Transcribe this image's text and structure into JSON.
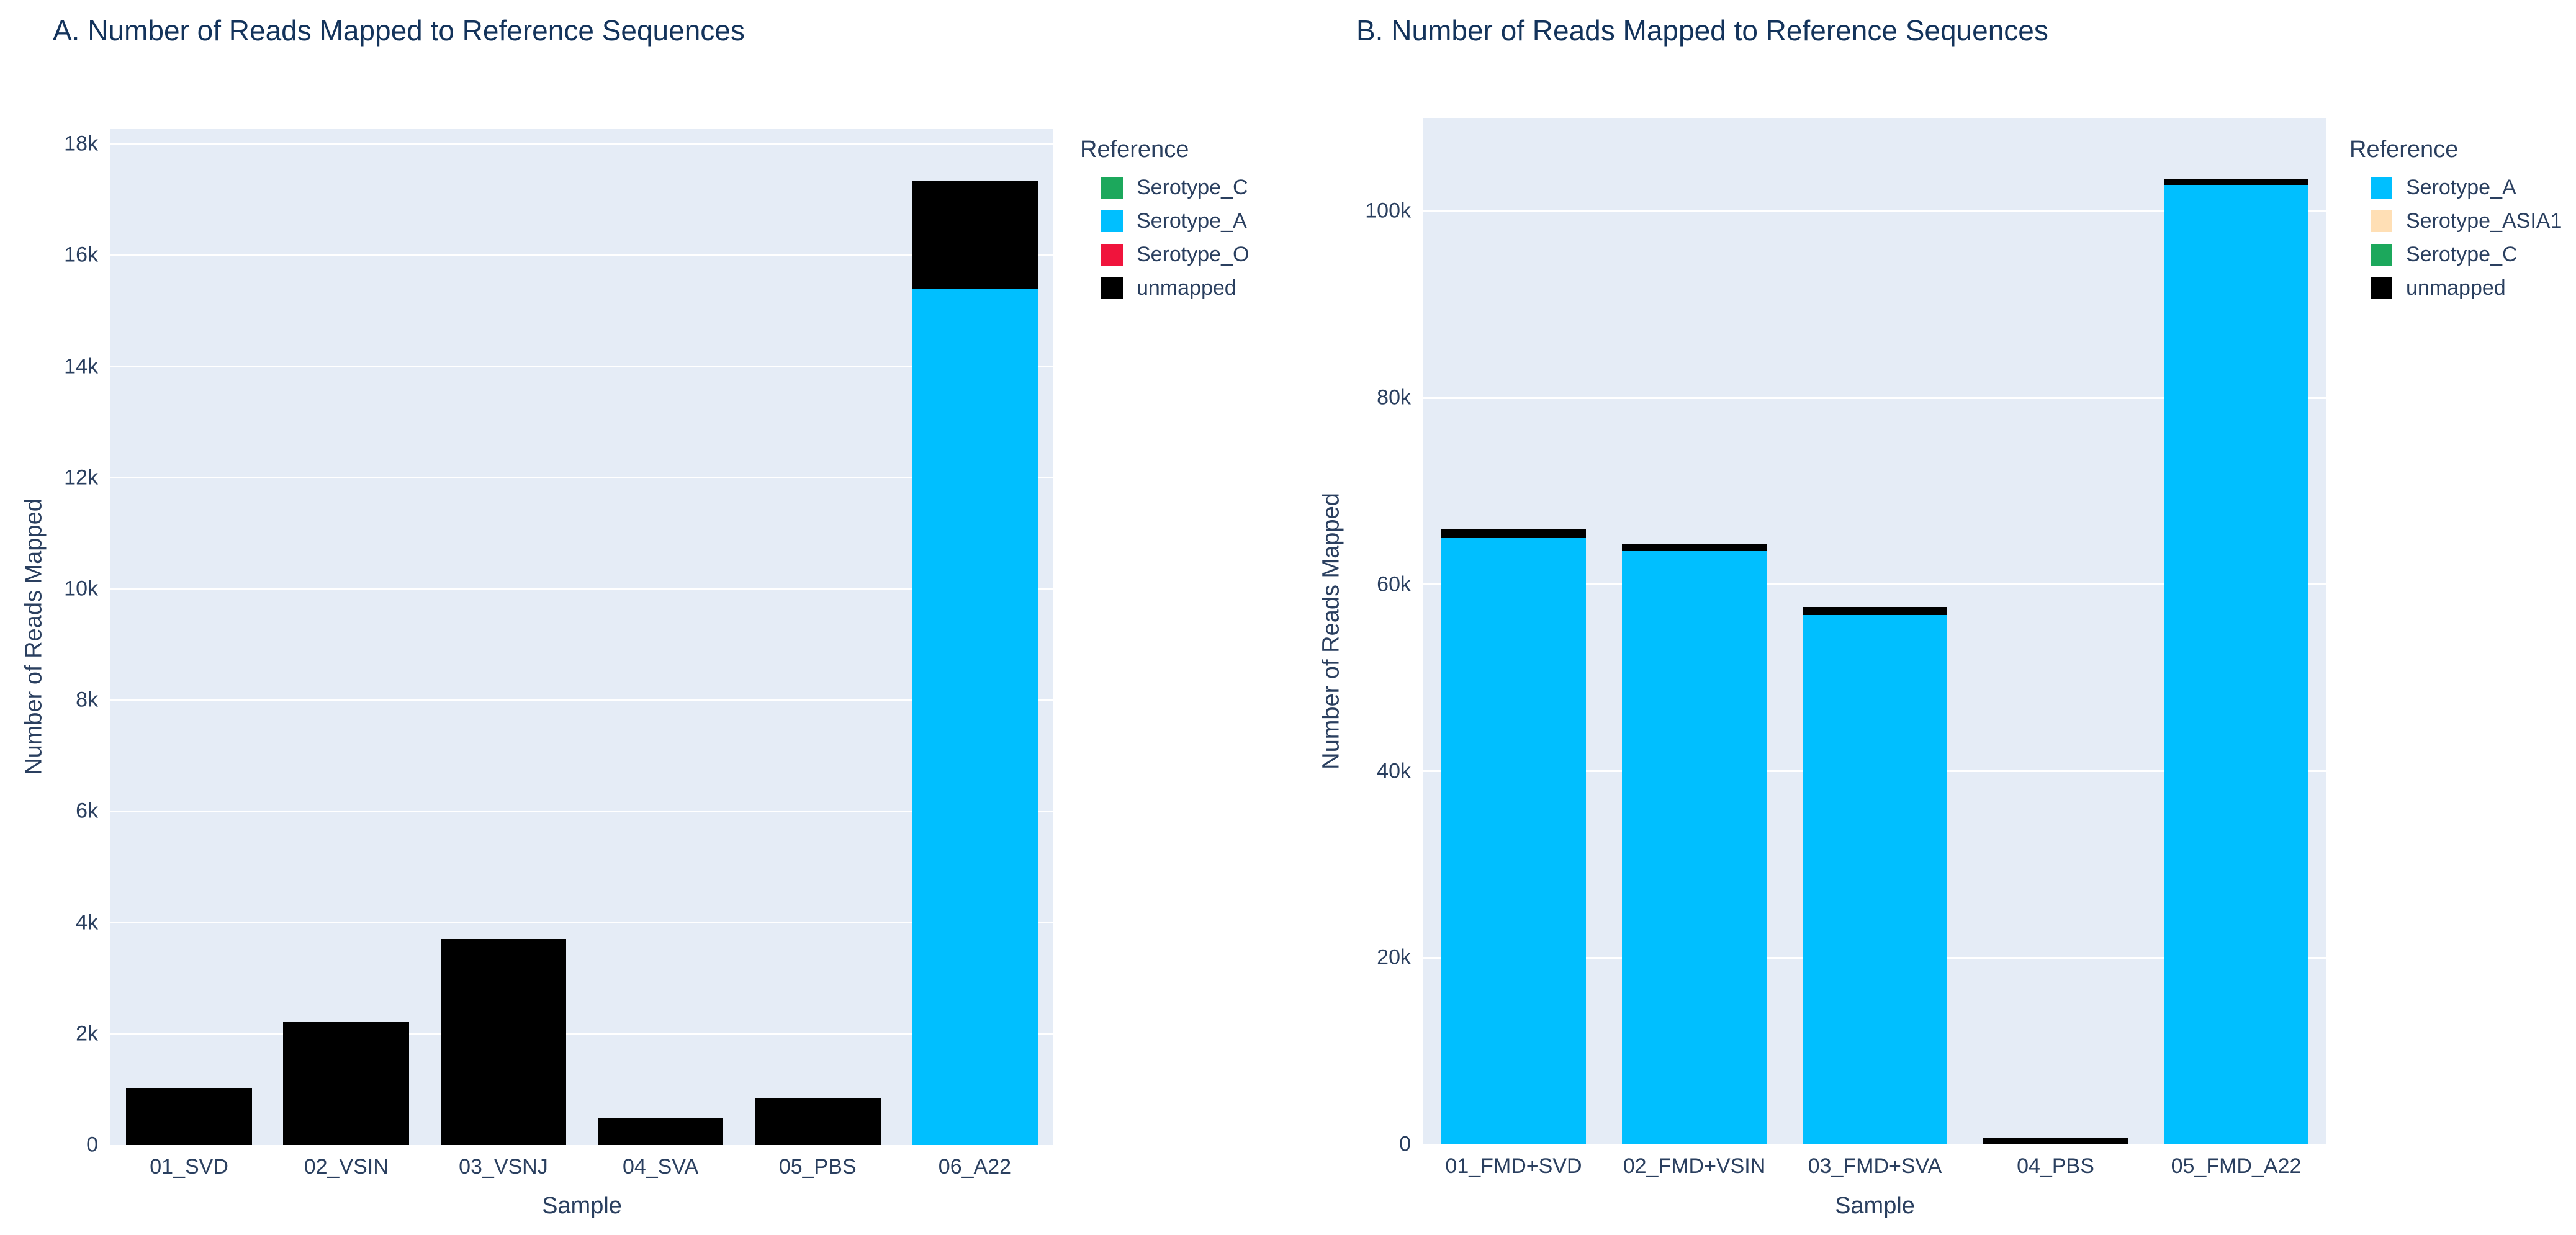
{
  "style": {
    "text_color": "#2a3f5f",
    "plot_background": "#e5ecf6",
    "grid_color": "#ffffff",
    "page_background": "#ffffff"
  },
  "chart_data": [
    {
      "id": "A",
      "type": "bar",
      "stacked": true,
      "title": "A. Number of Reads Mapped to Reference Sequences",
      "xlabel": "Sample",
      "ylabel": "Number of Reads Mapped",
      "legend_title": "Reference",
      "legend_position": "right",
      "grid": true,
      "plot_bg": "#e5ecf6",
      "grid_color": "#ffffff",
      "categories": [
        "01_SVD",
        "02_VSIN",
        "03_VSNJ",
        "04_SVA",
        "05_PBS",
        "06_A22"
      ],
      "series": [
        {
          "name": "Serotype_C",
          "color": "#1ca85c",
          "values": [
            0,
            0,
            0,
            0,
            0,
            0
          ]
        },
        {
          "name": "Serotype_A",
          "color": "#00bfff",
          "values": [
            0,
            0,
            0,
            0,
            0,
            15400
          ]
        },
        {
          "name": "Serotype_O",
          "color": "#f0143c",
          "values": [
            0,
            0,
            0,
            0,
            0,
            0
          ]
        },
        {
          "name": "unmapped",
          "color": "#000000",
          "values": [
            1030,
            2210,
            3700,
            480,
            840,
            1930
          ]
        }
      ],
      "ylim": [
        0,
        18270
      ],
      "yticks": [
        {
          "value": 0,
          "label": "0"
        },
        {
          "value": 2000,
          "label": "2k"
        },
        {
          "value": 4000,
          "label": "4k"
        },
        {
          "value": 6000,
          "label": "6k"
        },
        {
          "value": 8000,
          "label": "8k"
        },
        {
          "value": 10000,
          "label": "10k"
        },
        {
          "value": 12000,
          "label": "12k"
        },
        {
          "value": 14000,
          "label": "14k"
        },
        {
          "value": 16000,
          "label": "16k"
        },
        {
          "value": 18000,
          "label": "18k"
        }
      ]
    },
    {
      "id": "B",
      "type": "bar",
      "stacked": true,
      "title": "B. Number of Reads Mapped to Reference Sequences",
      "xlabel": "Sample",
      "ylabel": "Number of Reads Mapped",
      "legend_title": "Reference",
      "legend_position": "right",
      "grid": true,
      "plot_bg": "#e5ecf6",
      "grid_color": "#ffffff",
      "categories": [
        "01_FMD+SVD",
        "02_FMD+VSIN",
        "03_FMD+SVA",
        "04_PBS",
        "05_FMD_A22"
      ],
      "series": [
        {
          "name": "Serotype_A",
          "color": "#00bfff",
          "values": [
            65000,
            63600,
            56700,
            0,
            102800
          ]
        },
        {
          "name": "Serotype_ASIA1",
          "color": "#ffdfb5",
          "values": [
            0,
            0,
            0,
            0,
            0
          ]
        },
        {
          "name": "Serotype_C",
          "color": "#1ca85c",
          "values": [
            0,
            0,
            0,
            0,
            0
          ]
        },
        {
          "name": "unmapped",
          "color": "#000000",
          "values": [
            1000,
            700,
            900,
            700,
            700
          ]
        }
      ],
      "ylim": [
        0,
        110000
      ],
      "yticks": [
        {
          "value": 0,
          "label": "0"
        },
        {
          "value": 20000,
          "label": "20k"
        },
        {
          "value": 40000,
          "label": "40k"
        },
        {
          "value": 60000,
          "label": "60k"
        },
        {
          "value": 80000,
          "label": "80k"
        },
        {
          "value": 100000,
          "label": "100k"
        }
      ]
    }
  ]
}
